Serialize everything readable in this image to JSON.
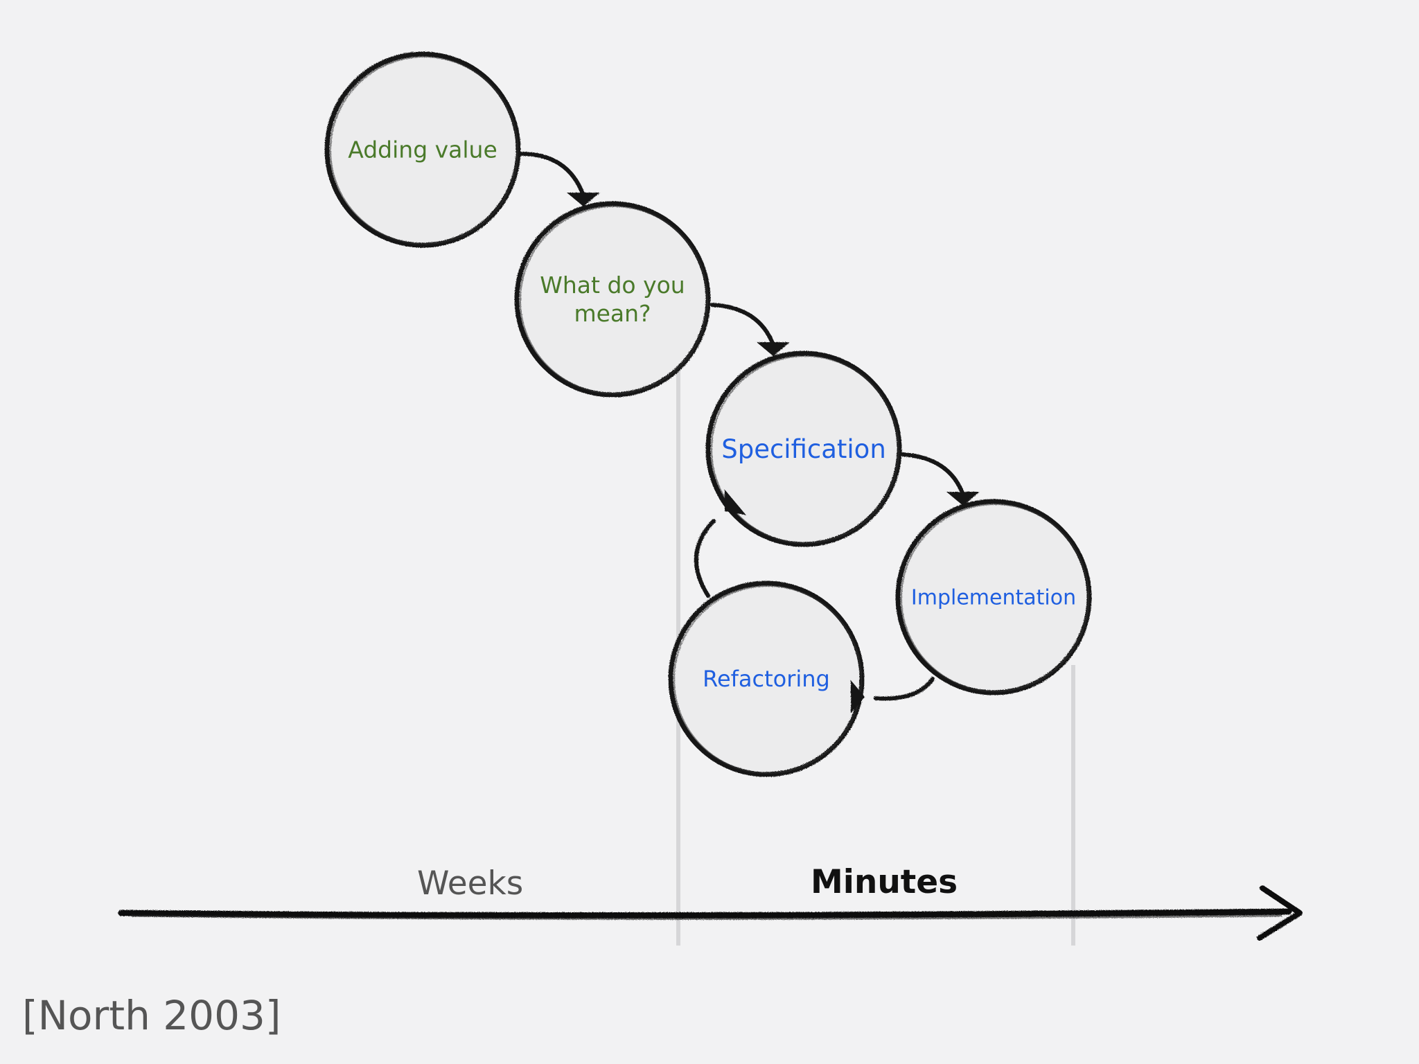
{
  "nodes": [
    {
      "id": "adding-value",
      "lines": [
        "Adding value"
      ],
      "color": "#4a7a2a"
    },
    {
      "id": "what-do-you-mean",
      "lines": [
        "What do you",
        "mean?"
      ],
      "color": "#4a7a2a"
    },
    {
      "id": "specification",
      "lines": [
        "Specification"
      ],
      "color": "#1f5fe0"
    },
    {
      "id": "implementation",
      "lines": [
        "Implementation"
      ],
      "color": "#1f5fe0"
    },
    {
      "id": "refactoring",
      "lines": [
        "Refactoring"
      ],
      "color": "#1f5fe0"
    }
  ],
  "edges": [
    {
      "from": "adding-value",
      "to": "what-do-you-mean"
    },
    {
      "from": "what-do-you-mean",
      "to": "specification"
    },
    {
      "from": "specification",
      "to": "implementation"
    },
    {
      "from": "implementation",
      "to": "refactoring"
    },
    {
      "from": "refactoring",
      "to": "specification"
    }
  ],
  "axis": {
    "weeks_label": "Weeks",
    "minutes_label": "Minutes"
  },
  "citation": "[North 2003]"
}
